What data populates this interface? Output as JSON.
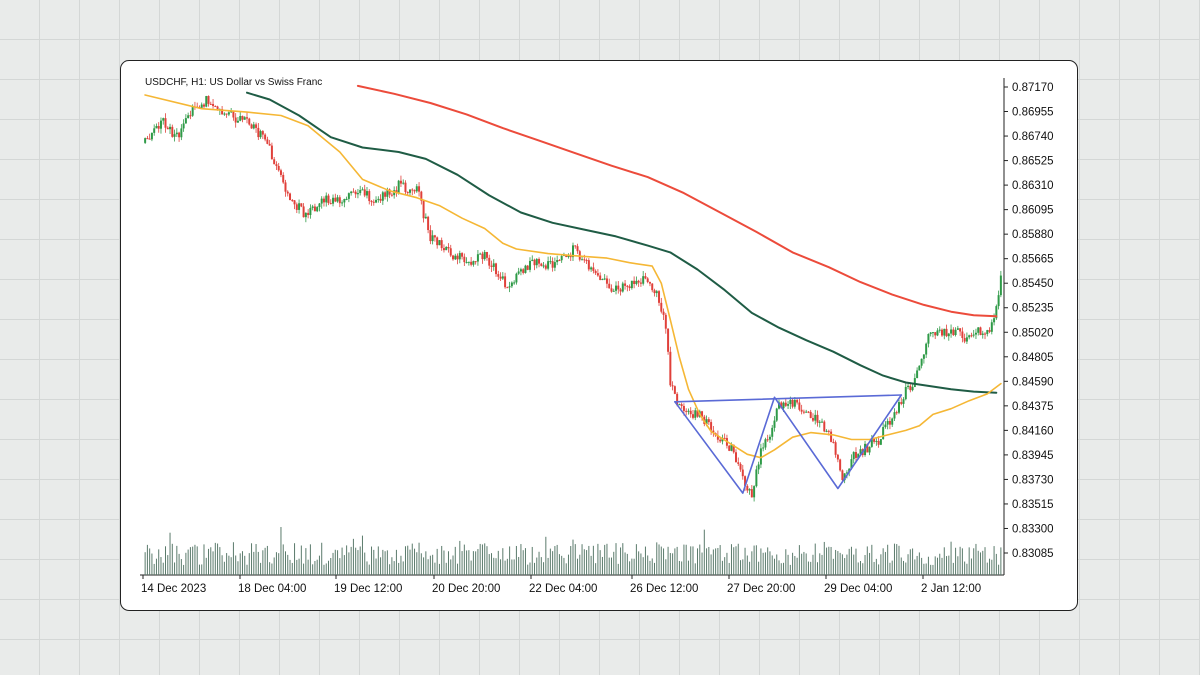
{
  "chart_data": {
    "type": "candlestick",
    "title": "USDCHF, H1: US Dollar vs Swiss Franc",
    "symbol": "USDCHF",
    "timeframe": "H1",
    "instrument": "US Dollar vs Swiss Franc",
    "ylim": [
      0.83085,
      0.8717
    ],
    "y_ticks": [
      "0.87170",
      "0.86955",
      "0.86740",
      "0.86525",
      "0.86310",
      "0.86095",
      "0.85880",
      "0.85665",
      "0.85450",
      "0.85235",
      "0.85020",
      "0.84805",
      "0.84590",
      "0.84375",
      "0.84160",
      "0.83945",
      "0.83730",
      "0.83515",
      "0.83300",
      "0.83085"
    ],
    "x_ticks": [
      "14 Dec 2023",
      "18 Dec 04:00",
      "19 Dec 12:00",
      "20 Dec 20:00",
      "22 Dec 04:00",
      "26 Dec 12:00",
      "27 Dec 20:00",
      "29 Dec 04:00",
      "2 Jan 12:00"
    ],
    "up_color": "#2e9a47",
    "down_color": "#e0403a",
    "volume_color": "#5b7b6c",
    "close_path": [
      [
        0,
        0.8668
      ],
      [
        8,
        0.8685
      ],
      [
        15,
        0.8672
      ],
      [
        22,
        0.8702
      ],
      [
        28,
        0.8706
      ],
      [
        33,
        0.8698
      ],
      [
        40,
        0.869
      ],
      [
        46,
        0.8686
      ],
      [
        52,
        0.8672
      ],
      [
        58,
        0.865
      ],
      [
        64,
        0.8617
      ],
      [
        70,
        0.8607
      ],
      [
        76,
        0.8613
      ],
      [
        82,
        0.8619
      ],
      [
        88,
        0.8616
      ],
      [
        94,
        0.8628
      ],
      [
        100,
        0.862
      ],
      [
        106,
        0.8623
      ],
      [
        112,
        0.863
      ],
      [
        120,
        0.8628
      ],
      [
        126,
        0.8585
      ],
      [
        132,
        0.8575
      ],
      [
        138,
        0.8568
      ],
      [
        144,
        0.8566
      ],
      [
        150,
        0.8571
      ],
      [
        156,
        0.8553
      ],
      [
        160,
        0.8543
      ],
      [
        166,
        0.8556
      ],
      [
        172,
        0.8564
      ],
      [
        178,
        0.856
      ],
      [
        184,
        0.8564
      ],
      [
        190,
        0.8576
      ],
      [
        196,
        0.8559
      ],
      [
        202,
        0.8545
      ],
      [
        208,
        0.8541
      ],
      [
        214,
        0.8543
      ],
      [
        220,
        0.8548
      ],
      [
        226,
        0.8536
      ],
      [
        230,
        0.851
      ],
      [
        232,
        0.846
      ],
      [
        235,
        0.8437
      ],
      [
        240,
        0.8433
      ],
      [
        245,
        0.8428
      ],
      [
        250,
        0.8418
      ],
      [
        255,
        0.8408
      ],
      [
        260,
        0.8398
      ],
      [
        264,
        0.8374
      ],
      [
        268,
        0.8359
      ],
      [
        272,
        0.8398
      ],
      [
        276,
        0.8415
      ],
      [
        280,
        0.8438
      ],
      [
        284,
        0.8444
      ],
      [
        288,
        0.8438
      ],
      [
        292,
        0.8433
      ],
      [
        296,
        0.8426
      ],
      [
        300,
        0.8418
      ],
      [
        304,
        0.8403
      ],
      [
        308,
        0.8372
      ],
      [
        312,
        0.8391
      ],
      [
        316,
        0.8396
      ],
      [
        320,
        0.8403
      ],
      [
        324,
        0.8408
      ],
      [
        328,
        0.842
      ],
      [
        332,
        0.8434
      ],
      [
        336,
        0.8452
      ],
      [
        340,
        0.846
      ],
      [
        343,
        0.8478
      ],
      [
        346,
        0.8496
      ],
      [
        350,
        0.8505
      ],
      [
        354,
        0.85
      ],
      [
        358,
        0.8502
      ],
      [
        362,
        0.8498
      ],
      [
        366,
        0.85
      ],
      [
        370,
        0.8503
      ],
      [
        373,
        0.8506
      ],
      [
        376,
        0.8525
      ],
      [
        378,
        0.8553
      ]
    ],
    "ma_fast": [
      [
        0,
        0.871
      ],
      [
        25,
        0.8698
      ],
      [
        45,
        0.8695
      ],
      [
        60,
        0.8692
      ],
      [
        72,
        0.8683
      ],
      [
        86,
        0.866
      ],
      [
        96,
        0.8636
      ],
      [
        108,
        0.8626
      ],
      [
        120,
        0.862
      ],
      [
        130,
        0.8613
      ],
      [
        140,
        0.8602
      ],
      [
        150,
        0.8593
      ],
      [
        158,
        0.858
      ],
      [
        164,
        0.8575
      ],
      [
        178,
        0.8571
      ],
      [
        190,
        0.8569
      ],
      [
        204,
        0.8567
      ],
      [
        214,
        0.8563
      ],
      [
        224,
        0.856
      ],
      [
        228,
        0.8545
      ],
      [
        232,
        0.8513
      ],
      [
        236,
        0.848
      ],
      [
        240,
        0.8452
      ],
      [
        245,
        0.843
      ],
      [
        250,
        0.8415
      ],
      [
        258,
        0.8405
      ],
      [
        266,
        0.8395
      ],
      [
        272,
        0.8392
      ],
      [
        278,
        0.8399
      ],
      [
        286,
        0.841
      ],
      [
        294,
        0.8414
      ],
      [
        304,
        0.8412
      ],
      [
        312,
        0.8408
      ],
      [
        320,
        0.8408
      ],
      [
        328,
        0.8412
      ],
      [
        336,
        0.8416
      ],
      [
        342,
        0.842
      ],
      [
        348,
        0.843
      ],
      [
        356,
        0.8435
      ],
      [
        364,
        0.8442
      ],
      [
        372,
        0.8448
      ],
      [
        378,
        0.8457
      ]
    ],
    "ma_mid": [
      [
        45,
        0.8712
      ],
      [
        55,
        0.8706
      ],
      [
        68,
        0.8692
      ],
      [
        82,
        0.8673
      ],
      [
        96,
        0.8664
      ],
      [
        112,
        0.866
      ],
      [
        124,
        0.8654
      ],
      [
        138,
        0.864
      ],
      [
        152,
        0.8622
      ],
      [
        166,
        0.8607
      ],
      [
        180,
        0.8598
      ],
      [
        194,
        0.8592
      ],
      [
        208,
        0.8586
      ],
      [
        222,
        0.8578
      ],
      [
        232,
        0.8572
      ],
      [
        244,
        0.8557
      ],
      [
        256,
        0.8539
      ],
      [
        268,
        0.8519
      ],
      [
        280,
        0.8506
      ],
      [
        292,
        0.8495
      ],
      [
        304,
        0.8485
      ],
      [
        316,
        0.8473
      ],
      [
        326,
        0.8464
      ],
      [
        336,
        0.8458
      ],
      [
        346,
        0.8455
      ],
      [
        356,
        0.8452
      ],
      [
        366,
        0.845
      ],
      [
        376,
        0.8449
      ]
    ],
    "ma_slow": [
      [
        94,
        0.8718
      ],
      [
        110,
        0.8711
      ],
      [
        126,
        0.8703
      ],
      [
        142,
        0.8693
      ],
      [
        158,
        0.8681
      ],
      [
        174,
        0.867
      ],
      [
        190,
        0.8659
      ],
      [
        206,
        0.8648
      ],
      [
        222,
        0.8638
      ],
      [
        238,
        0.8624
      ],
      [
        254,
        0.8607
      ],
      [
        270,
        0.859
      ],
      [
        286,
        0.8572
      ],
      [
        302,
        0.8559
      ],
      [
        316,
        0.8546
      ],
      [
        330,
        0.8535
      ],
      [
        344,
        0.8526
      ],
      [
        356,
        0.852
      ],
      [
        366,
        0.8517
      ],
      [
        376,
        0.8516
      ]
    ],
    "pattern_w": [
      [
        234,
        0.8441
      ],
      [
        264,
        0.8361
      ],
      [
        278,
        0.8445
      ],
      [
        306,
        0.8365
      ],
      [
        334,
        0.8447
      ]
    ],
    "neckline": [
      [
        234,
        0.8441
      ],
      [
        334,
        0.8447
      ]
    ],
    "colors": {
      "ma_fast": "#f5b735",
      "ma_mid": "#1f5c45",
      "ma_slow": "#ec4b3b",
      "pattern": "#5a6ad6"
    }
  }
}
